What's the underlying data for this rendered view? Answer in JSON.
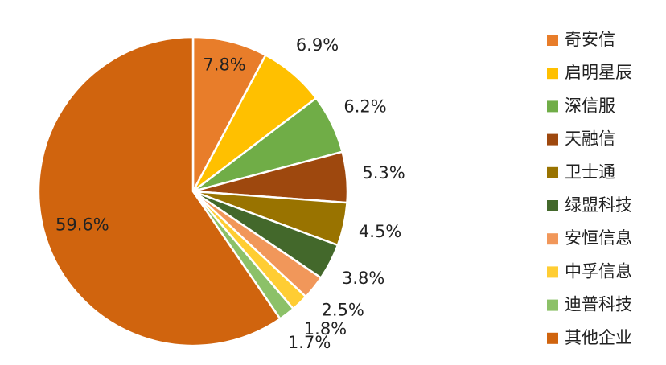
{
  "chart_data": {
    "type": "pie",
    "categories": [
      "奇安信",
      "启明星辰",
      "深信服",
      "天融信",
      "卫士通",
      "绿盟科技",
      "安恒信息",
      "中孚信息",
      "迪普科技",
      "其他企业"
    ],
    "values": [
      7.8,
      6.9,
      6.2,
      5.3,
      4.5,
      3.8,
      2.5,
      1.8,
      1.7,
      59.6
    ],
    "value_labels": [
      "7.8%",
      "6.9%",
      "6.2%",
      "5.3%",
      "4.5%",
      "3.8%",
      "2.5%",
      "1.8%",
      "1.7%",
      "59.6%"
    ],
    "colors": [
      "#e87d2a",
      "#ffc000",
      "#70ad47",
      "#9e480e",
      "#997300",
      "#43682b",
      "#f1975a",
      "#ffcd33",
      "#8cc168",
      "#d0640e"
    ],
    "legend": "right"
  }
}
